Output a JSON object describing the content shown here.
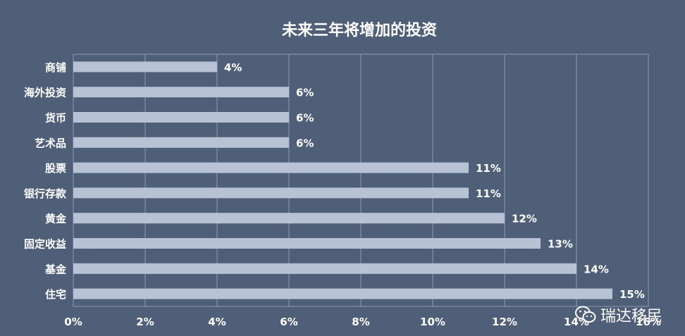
{
  "colors": {
    "background": "#4f5f78",
    "bar": "#b7c2d4",
    "grid": "#8d9bb2",
    "text": "#ffffff"
  },
  "watermark": {
    "text": "瑞达移民",
    "icon": "wechat-icon"
  },
  "chart_data": {
    "type": "bar",
    "orientation": "horizontal",
    "title": "未来三年将增加的投资",
    "categories": [
      "商铺",
      "海外投资",
      "货币",
      "艺术品",
      "股票",
      "银行存款",
      "黄金",
      "固定收益",
      "基金",
      "住宅"
    ],
    "values": [
      4,
      6,
      6,
      6,
      11,
      11,
      12,
      13,
      14,
      15
    ],
    "value_labels": [
      "4%",
      "6%",
      "6%",
      "6%",
      "11%",
      "11%",
      "12%",
      "13%",
      "14%",
      "15%"
    ],
    "xlim": [
      0,
      16
    ],
    "x_ticks": [
      0,
      2,
      4,
      6,
      8,
      10,
      12,
      14,
      16
    ],
    "x_tick_labels": [
      "0%",
      "2%",
      "4%",
      "6%",
      "8%",
      "10%",
      "12%",
      "14%",
      "16%"
    ],
    "grid": true,
    "legend": "none"
  }
}
